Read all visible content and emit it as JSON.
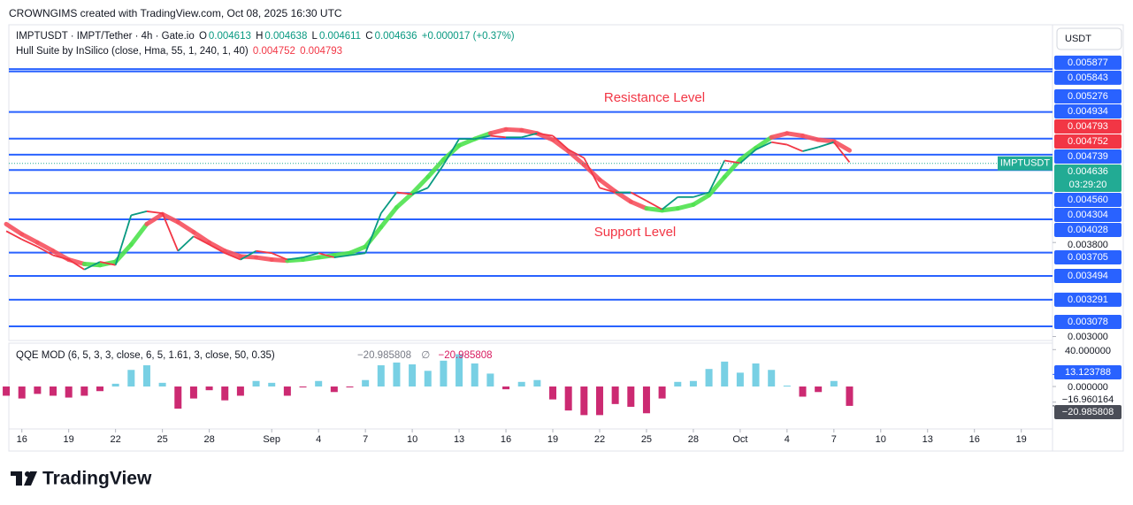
{
  "header": {
    "credit": "CROWNGIMS created with TradingView.com, Oct 08, 2025 16:30 UTC"
  },
  "chart_data": [
    {
      "type": "line",
      "title": "IMPTUSDT · IMPT/Tether · 4h · Gate.io",
      "ohlc": [
        [
          "O",
          0.004613
        ],
        [
          "H",
          0.004638
        ],
        [
          "L",
          0.004611
        ],
        [
          "C",
          0.004636
        ]
      ],
      "change": "+0.000017 (+0.37%)",
      "currency": "USDT",
      "annotations": [
        "Resistance Level",
        "Support Level"
      ],
      "log_scale": true,
      "ylim": [
        0.00297,
        0.00657
      ],
      "yticks": [
        {
          "value": 0.0038,
          "label": "0.003800"
        },
        {
          "value": 0.003,
          "label": "0.003000"
        }
      ],
      "xlim": [
        "2025-08-15T04:00",
        "2025-10-21T00:00"
      ],
      "xticks": [
        {
          "value": "2025-08-16",
          "label": "16"
        },
        {
          "value": "2025-08-19",
          "label": "19"
        },
        {
          "value": "2025-08-22",
          "label": "22"
        },
        {
          "value": "2025-08-25",
          "label": "25"
        },
        {
          "value": "2025-08-28",
          "label": "28"
        },
        {
          "value": "2025-09-01",
          "label": "Sep"
        },
        {
          "value": "2025-09-04",
          "label": "4"
        },
        {
          "value": "2025-09-07",
          "label": "7"
        },
        {
          "value": "2025-09-10",
          "label": "10"
        },
        {
          "value": "2025-09-13",
          "label": "13"
        },
        {
          "value": "2025-09-16",
          "label": "16"
        },
        {
          "value": "2025-09-19",
          "label": "19"
        },
        {
          "value": "2025-09-22",
          "label": "22"
        },
        {
          "value": "2025-09-25",
          "label": "25"
        },
        {
          "value": "2025-09-28",
          "label": "28"
        },
        {
          "value": "2025-10-01",
          "label": "Oct"
        },
        {
          "value": "2025-10-04",
          "label": "4"
        },
        {
          "value": "2025-10-07",
          "label": "7"
        },
        {
          "value": "2025-10-10",
          "label": "10"
        },
        {
          "value": "2025-10-13",
          "label": "13"
        },
        {
          "value": "2025-10-16",
          "label": "16"
        },
        {
          "value": "2025-10-19",
          "label": "19"
        }
      ],
      "levels": [
        0.005877,
        0.005843,
        0.005276,
        0.004934,
        0.004739,
        {
          "value": 0.00456,
          "label": "0.004560"
        },
        0.004304,
        0.004028,
        0.003705,
        0.003494,
        0.003291,
        0.003078
      ],
      "level_color": "#2962ff",
      "last_price": 0.004636,
      "countdown": "03:29:20",
      "price_color": "#22ab94",
      "x": [
        "2025-08-15",
        "2025-08-16",
        "2025-08-17",
        "2025-08-18",
        "2025-08-19",
        "2025-08-20",
        "2025-08-21",
        "2025-08-22",
        "2025-08-23",
        "2025-08-24",
        "2025-08-25",
        "2025-08-26",
        "2025-08-27",
        "2025-08-28",
        "2025-08-29",
        "2025-08-30",
        "2025-08-31",
        "2025-09-01",
        "2025-09-02",
        "2025-09-03",
        "2025-09-04",
        "2025-09-05",
        "2025-09-06",
        "2025-09-07",
        "2025-09-08",
        "2025-09-09",
        "2025-09-10",
        "2025-09-11",
        "2025-09-12",
        "2025-09-13",
        "2025-09-14",
        "2025-09-15",
        "2025-09-16",
        "2025-09-17",
        "2025-09-18",
        "2025-09-19",
        "2025-09-20",
        "2025-09-21",
        "2025-09-22",
        "2025-09-23",
        "2025-09-24",
        "2025-09-25",
        "2025-09-26",
        "2025-09-27",
        "2025-09-28",
        "2025-09-29",
        "2025-09-30",
        "2025-10-01",
        "2025-10-02",
        "2025-10-03",
        "2025-10-04",
        "2025-10-05",
        "2025-10-06",
        "2025-10-07",
        "2025-10-08"
      ],
      "series": [
        {
          "name": "IMPTUSDT",
          "up_color": "#089981",
          "down_color": "#f23645",
          "values": [
            0.00391,
            0.00383,
            0.00376,
            0.00368,
            0.00364,
            0.00355,
            0.00362,
            0.00359,
            0.00407,
            0.00411,
            0.00409,
            0.00372,
            0.00386,
            0.00378,
            0.0037,
            0.00364,
            0.00372,
            0.0037,
            0.00364,
            0.00366,
            0.0037,
            0.00366,
            0.00368,
            0.0037,
            0.00409,
            0.00431,
            0.00429,
            0.00436,
            0.00462,
            0.00493,
            0.00493,
            0.00497,
            0.00495,
            0.00495,
            0.005,
            0.00497,
            0.0048,
            0.0047,
            0.00436,
            0.00431,
            0.00431,
            0.00422,
            0.00413,
            0.00426,
            0.00426,
            0.00431,
            0.00467,
            0.00464,
            0.0048,
            0.00489,
            0.00486,
            0.00478,
            0.00483,
            0.00489,
            0.00465
          ]
        },
        {
          "name": "Hull Suite by InSilico (close, Hma, 55, 1, 240, 1, 40)",
          "last_values": [
            0.004752,
            0.004793
          ],
          "last_color": "#f23645",
          "values": [
            0.00398,
            0.00388,
            0.0038,
            0.00372,
            0.00364,
            0.0036,
            0.00359,
            0.00362,
            0.00378,
            0.00398,
            0.00408,
            0.004,
            0.0039,
            0.0038,
            0.00372,
            0.00367,
            0.00366,
            0.00364,
            0.00363,
            0.00364,
            0.00366,
            0.00368,
            0.0037,
            0.00376,
            0.00395,
            0.00415,
            0.0043,
            0.00448,
            0.00468,
            0.00485,
            0.00493,
            0.005,
            0.00505,
            0.00504,
            0.005,
            0.00492,
            0.00478,
            0.00462,
            0.00445,
            0.00432,
            0.00421,
            0.00414,
            0.00412,
            0.00414,
            0.00418,
            0.00428,
            0.00448,
            0.00468,
            0.00482,
            0.00495,
            0.005,
            0.00497,
            0.00492,
            0.0049,
            0.00479
          ],
          "colors": [
            "#f7525f",
            "#f7525f",
            "#f7525f",
            "#f7525f",
            "#f7525f",
            "#f7525f",
            "#4fe34f",
            "#4fe34f",
            "#4fe34f",
            "#4fe34f",
            "#f7525f",
            "#f7525f",
            "#f7525f",
            "#f7525f",
            "#f7525f",
            "#f7525f",
            "#f7525f",
            "#f7525f",
            "#f7525f",
            "#4fe34f",
            "#4fe34f",
            "#4fe34f",
            "#4fe34f",
            "#4fe34f",
            "#4fe34f",
            "#4fe34f",
            "#4fe34f",
            "#4fe34f",
            "#4fe34f",
            "#4fe34f",
            "#4fe34f",
            "#4fe34f",
            "#f7525f",
            "#f7525f",
            "#f7525f",
            "#f7525f",
            "#f7525f",
            "#f7525f",
            "#f7525f",
            "#f7525f",
            "#f7525f",
            "#f7525f",
            "#4fe34f",
            "#4fe34f",
            "#4fe34f",
            "#4fe34f",
            "#4fe34f",
            "#4fe34f",
            "#4fe34f",
            "#4fe34f",
            "#f7525f",
            "#f7525f",
            "#f7525f",
            "#f7525f",
            "#f7525f"
          ]
        }
      ]
    },
    {
      "type": "bar",
      "title": "QQE MOD (6, 5, 3, 3, close, 6, 5, 1.61, 3, close, 50, 0.35)",
      "legend_items": [
        "−20.985808",
        "∅",
        "−20.985808"
      ],
      "ylim": [
        -46,
        47
      ],
      "yticks": [
        {
          "value": 40,
          "label": "40.000000"
        },
        {
          "value": 0,
          "label": "0.000000"
        },
        {
          "value": -16.960164,
          "label": "−16.960164"
        }
      ],
      "markers": [
        {
          "value": 13.123788,
          "label": "13.123788",
          "color": "#2962ff"
        },
        {
          "value": -20.985808,
          "label": "−20.985808",
          "color": "#4a4d57"
        }
      ],
      "pos_color": "#78d0e4",
      "neg_color": "#cc2a72",
      "x": [
        "2025-08-15",
        "2025-08-16",
        "2025-08-17",
        "2025-08-18",
        "2025-08-19",
        "2025-08-20",
        "2025-08-21",
        "2025-08-22",
        "2025-08-23",
        "2025-08-24",
        "2025-08-25",
        "2025-08-26",
        "2025-08-27",
        "2025-08-28",
        "2025-08-29",
        "2025-08-30",
        "2025-08-31",
        "2025-09-01",
        "2025-09-02",
        "2025-09-03",
        "2025-09-04",
        "2025-09-05",
        "2025-09-06",
        "2025-09-07",
        "2025-09-08",
        "2025-09-09",
        "2025-09-10",
        "2025-09-11",
        "2025-09-12",
        "2025-09-13",
        "2025-09-14",
        "2025-09-15",
        "2025-09-16",
        "2025-09-17",
        "2025-09-18",
        "2025-09-19",
        "2025-09-20",
        "2025-09-21",
        "2025-09-22",
        "2025-09-23",
        "2025-09-24",
        "2025-09-25",
        "2025-09-26",
        "2025-09-27",
        "2025-09-28",
        "2025-09-29",
        "2025-09-30",
        "2025-10-01",
        "2025-10-02",
        "2025-10-03",
        "2025-10-04",
        "2025-10-05",
        "2025-10-06",
        "2025-10-07",
        "2025-10-08"
      ],
      "values": [
        -10,
        -13,
        -8,
        -10,
        -12,
        -10,
        -5,
        3,
        18,
        23,
        4,
        -24,
        -13,
        -4,
        -15,
        -10,
        6,
        4,
        -10,
        -1,
        6,
        -6,
        -1,
        7,
        23,
        26,
        24,
        17,
        28,
        35,
        25,
        14,
        -3,
        5,
        7,
        -14,
        -26,
        -31,
        -31,
        -19,
        -22,
        -29,
        -13,
        5,
        6,
        19,
        27,
        15,
        25,
        18,
        1,
        -11,
        -6,
        6,
        -20.985808
      ]
    }
  ],
  "footer": {
    "brand": "TradingView"
  }
}
